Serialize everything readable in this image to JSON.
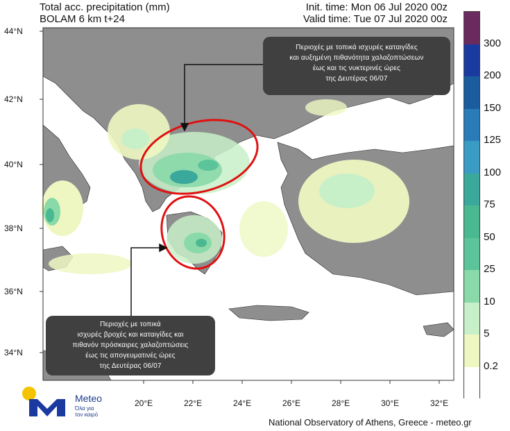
{
  "header": {
    "title_line1": "Total acc. precipitation (mm)",
    "title_line2": "BOLAM 6 km t+24",
    "init_time": "Init. time: Mon 06 Jul 2020 00z",
    "valid_time": "Valid time: Tue 07 Jul 2020 00z"
  },
  "map": {
    "latitude_labels": [
      "44°N",
      "42°N",
      "40°N",
      "38°N",
      "36°N",
      "34°N"
    ],
    "longitude_labels": [
      "20°E",
      "22°E",
      "24°E",
      "26°E",
      "28°E",
      "30°E",
      "32°E"
    ]
  },
  "colorbar": {
    "labels": [
      "300",
      "200",
      "150",
      "125",
      "100",
      "75",
      "50",
      "25",
      "10",
      "5",
      "0.2"
    ],
    "colors": [
      "#6b2a5e",
      "#1a3aa0",
      "#1a5c9e",
      "#2a7cb8",
      "#3a9bc4",
      "#3aa89a",
      "#4ab890",
      "#5cc49a",
      "#8ad9a8",
      "#c8f0c8",
      "#eef7c2",
      "#ffffff"
    ]
  },
  "callouts": {
    "north_lines": [
      "Περιοχές με τοπικά ισχυρές καταιγίδες",
      "και αυξημένη πιθανότητα χαλαζοπτώσεων",
      "έως και τις νυκτερινές ώρες",
      "της Δευτέρας 06/07"
    ],
    "south_lines": [
      "Περιοχές με τοπικά",
      "ισχυρές βροχές και καταιγίδες και",
      "πιθανόν πρόσκαιρες χαλαζοπτώσεις",
      "έως τις απογευματινές ώρες",
      "της Δευτέρας 06/07"
    ]
  },
  "logo": {
    "name": "Meteo",
    "tagline": "Όλα για τον καιρό"
  },
  "footer": "National Observatory of Athens, Greece - meteo.gr"
}
